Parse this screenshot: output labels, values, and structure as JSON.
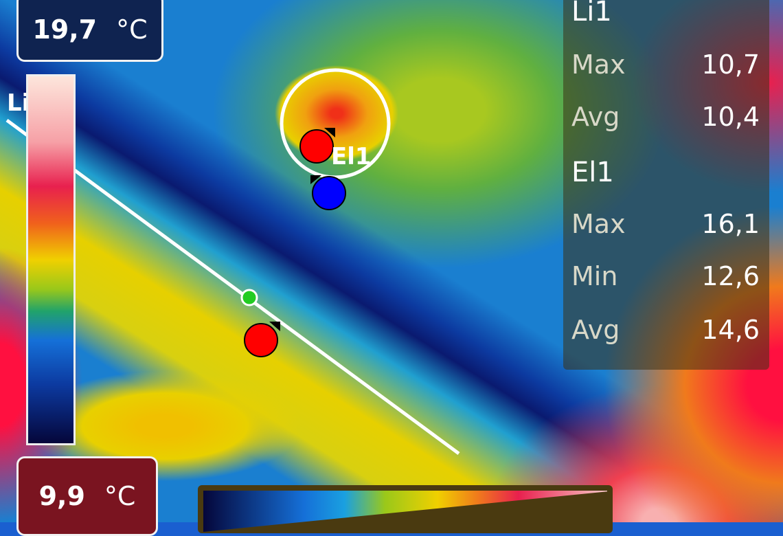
{
  "scale": {
    "max_value": "19,7",
    "min_value": "9,9",
    "unit": "°C"
  },
  "measurements": {
    "line": {
      "name": "Li1",
      "label_partial": "Li",
      "rows": [
        {
          "label": "Max",
          "value": "10,7"
        },
        {
          "label": "Avg",
          "value": "10,4"
        }
      ]
    },
    "ellipse": {
      "name": "El1",
      "rows": [
        {
          "label": "Max",
          "value": "16,1"
        },
        {
          "label": "Min",
          "value": "12,6"
        },
        {
          "label": "Avg",
          "value": "14,6"
        }
      ]
    }
  },
  "markers": {
    "hot_color": "#ff0000",
    "cold_color": "#0000ff",
    "center_color": "#22cc22"
  },
  "palette": "iron-rainbow"
}
